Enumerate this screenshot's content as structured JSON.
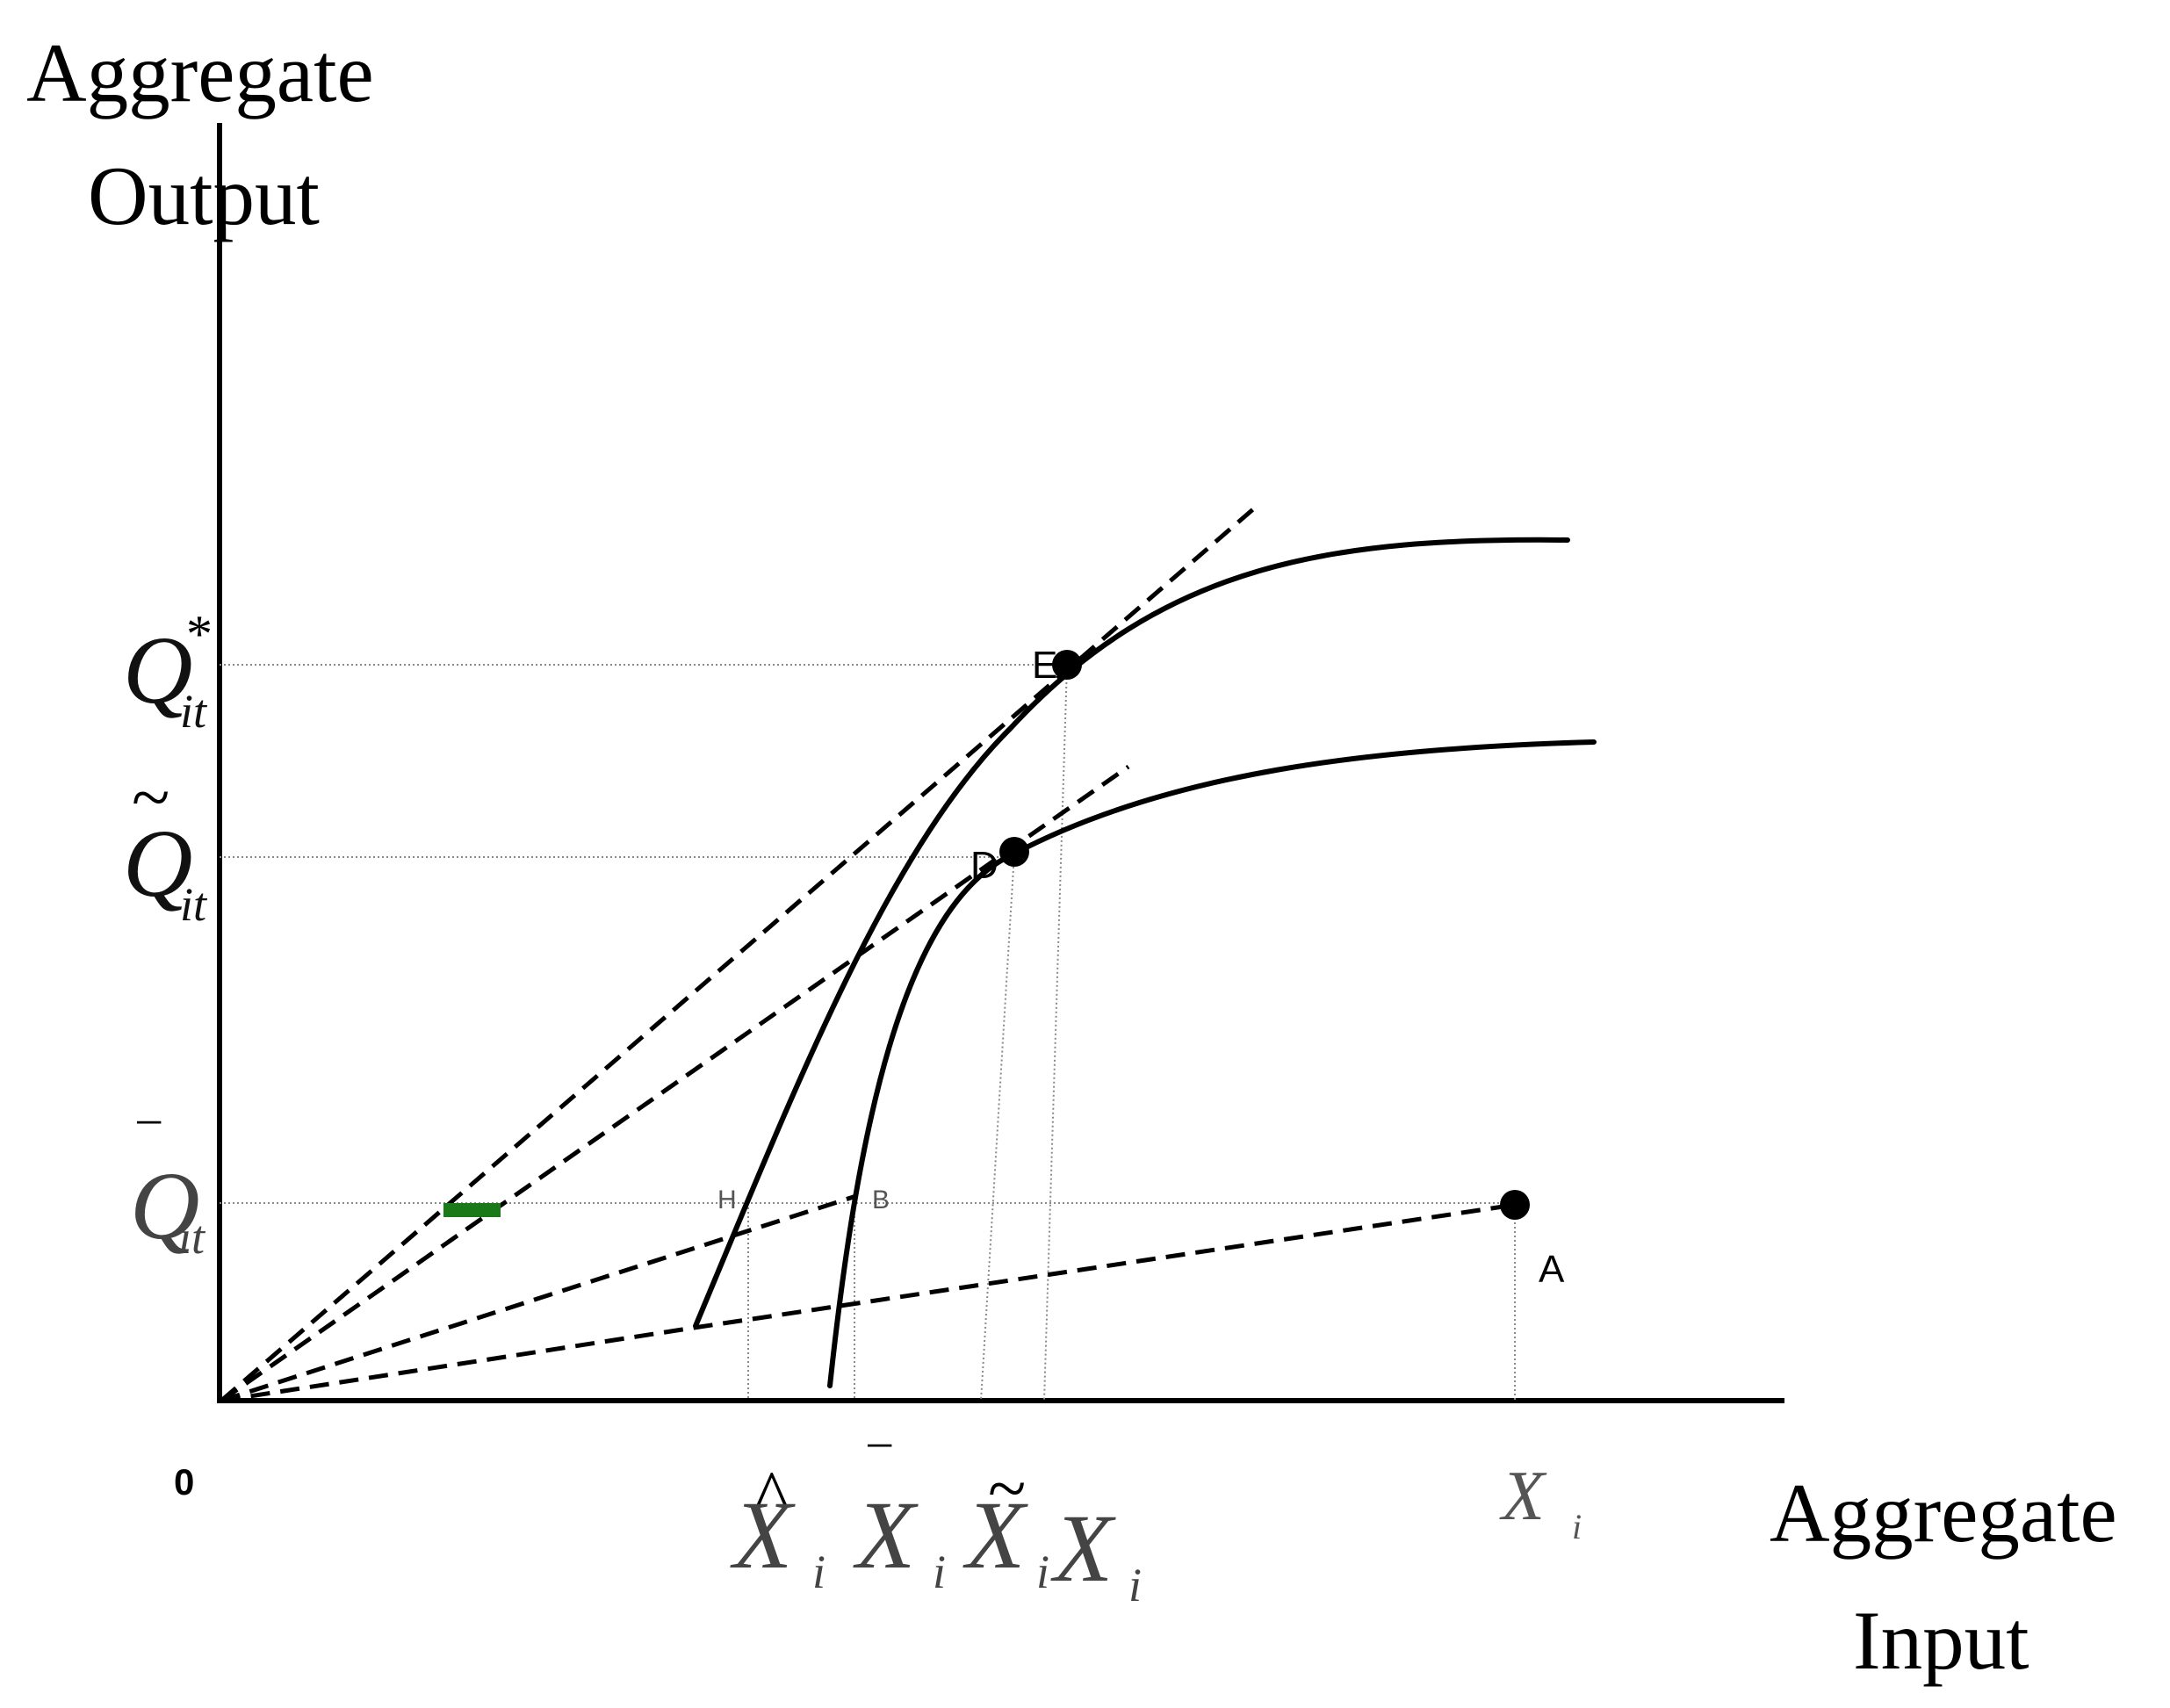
{
  "diagram": {
    "y_axis_title": {
      "line1": "Aggregate",
      "line2": "Output"
    },
    "x_axis_title": {
      "line1": "Aggregate",
      "line2": "Input"
    },
    "origin_label": "0",
    "y_ticks": [
      {
        "id": "q-star",
        "symbol": "Q",
        "accent": "*",
        "subscript": "it"
      },
      {
        "id": "q-tilde",
        "symbol": "Q",
        "accent": "~",
        "subscript": "it"
      },
      {
        "id": "q-bar",
        "symbol": "Q",
        "accent": "‾",
        "subscript": "it"
      }
    ],
    "x_ticks": [
      {
        "id": "x-hat",
        "symbol": "X",
        "accent": "^",
        "subscript": "i"
      },
      {
        "id": "x-bar",
        "symbol": "X",
        "accent": "‾",
        "subscript": "i"
      },
      {
        "id": "x-tilde",
        "symbol": "X",
        "accent": "~",
        "subscript": "i"
      },
      {
        "id": "x-star",
        "symbol": "X",
        "accent": "",
        "subscript": "i"
      },
      {
        "id": "x-a",
        "symbol": "X",
        "accent": "",
        "subscript": "i"
      }
    ],
    "points": [
      {
        "id": "E",
        "label": "E"
      },
      {
        "id": "D",
        "label": "D"
      },
      {
        "id": "A",
        "label": "A"
      }
    ],
    "colors": {
      "ink": "#000000",
      "guide": "#8a8a8a",
      "marker": "#1a7a1a"
    }
  }
}
